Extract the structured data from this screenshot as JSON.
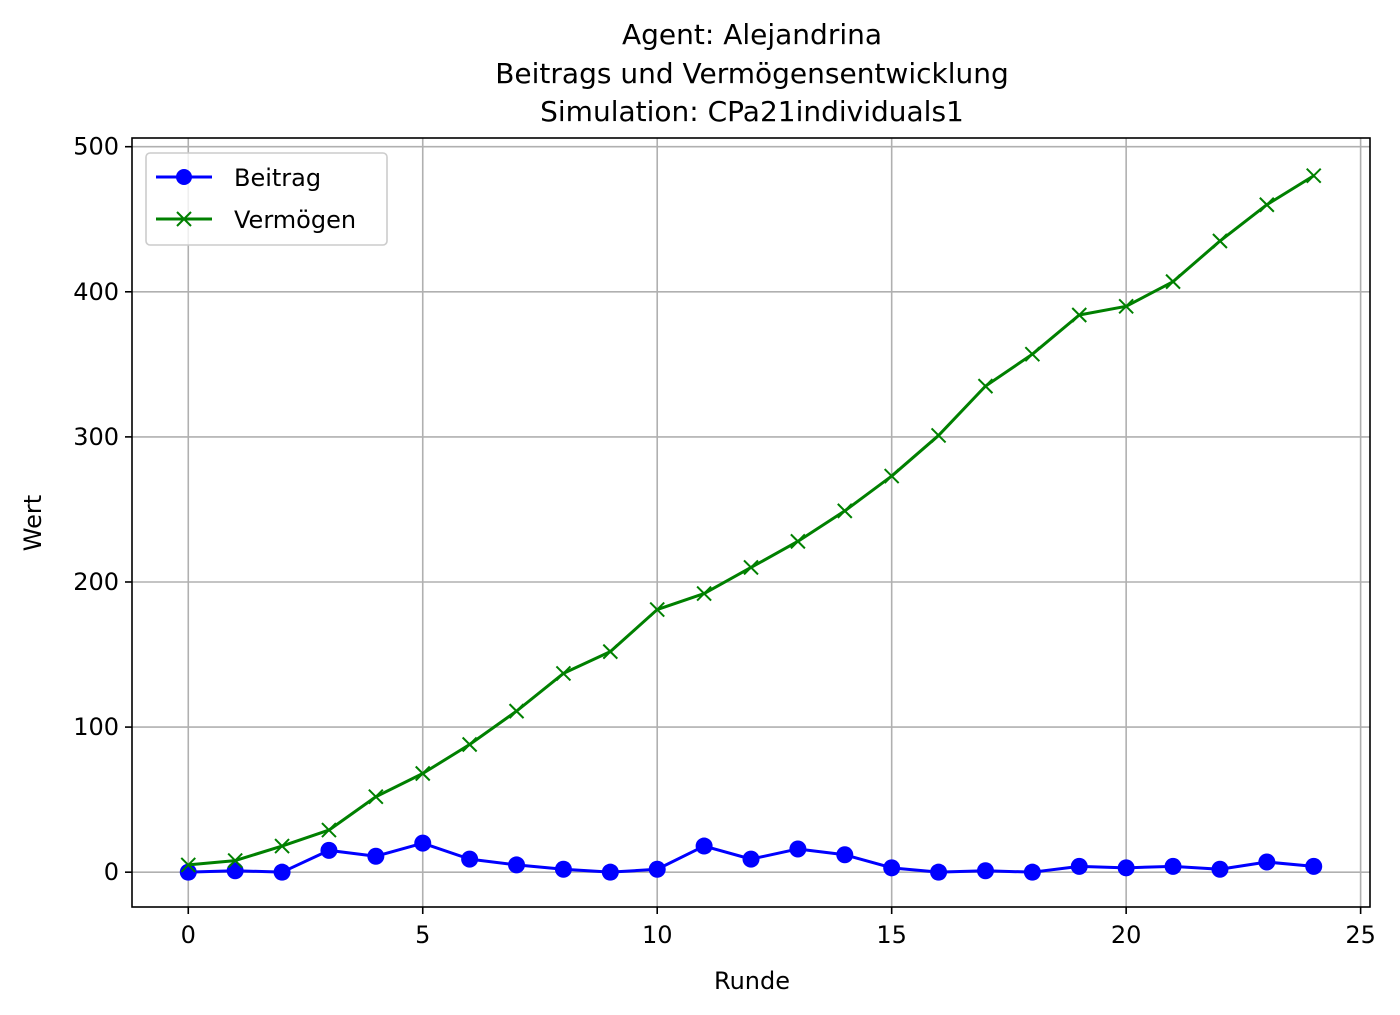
{
  "chart_data": {
    "type": "line",
    "title_lines": [
      "Agent: Alejandrina",
      "Beitrags und Vermögensentwicklung",
      "Simulation: CPa21individuals1"
    ],
    "xlabel": "Runde",
    "ylabel": "Wert",
    "xlim": [
      -1.2,
      25.2
    ],
    "ylim": [
      -24,
      506
    ],
    "xticks": [
      0,
      5,
      10,
      15,
      20,
      25
    ],
    "yticks": [
      0,
      100,
      200,
      300,
      400,
      500
    ],
    "grid": true,
    "legend_position": "top-left",
    "x": [
      0,
      1,
      2,
      3,
      4,
      5,
      6,
      7,
      8,
      9,
      10,
      11,
      12,
      13,
      14,
      15,
      16,
      17,
      18,
      19,
      20,
      21,
      22,
      23,
      24
    ],
    "series": [
      {
        "name": "Beitrag",
        "color": "#0000ff",
        "marker": "circle",
        "values": [
          0,
          1,
          0,
          15,
          11,
          20,
          9,
          5,
          2,
          0,
          2,
          18,
          9,
          16,
          12,
          3,
          0,
          1,
          0,
          4,
          3,
          4,
          2,
          7,
          4
        ]
      },
      {
        "name": "Vermögen",
        "color": "#008000",
        "marker": "x",
        "values": [
          5,
          8,
          18,
          29,
          52,
          68,
          88,
          111,
          137,
          152,
          181,
          192,
          210,
          228,
          249,
          273,
          301,
          335,
          357,
          384,
          390,
          407,
          435,
          460,
          480
        ]
      }
    ]
  }
}
